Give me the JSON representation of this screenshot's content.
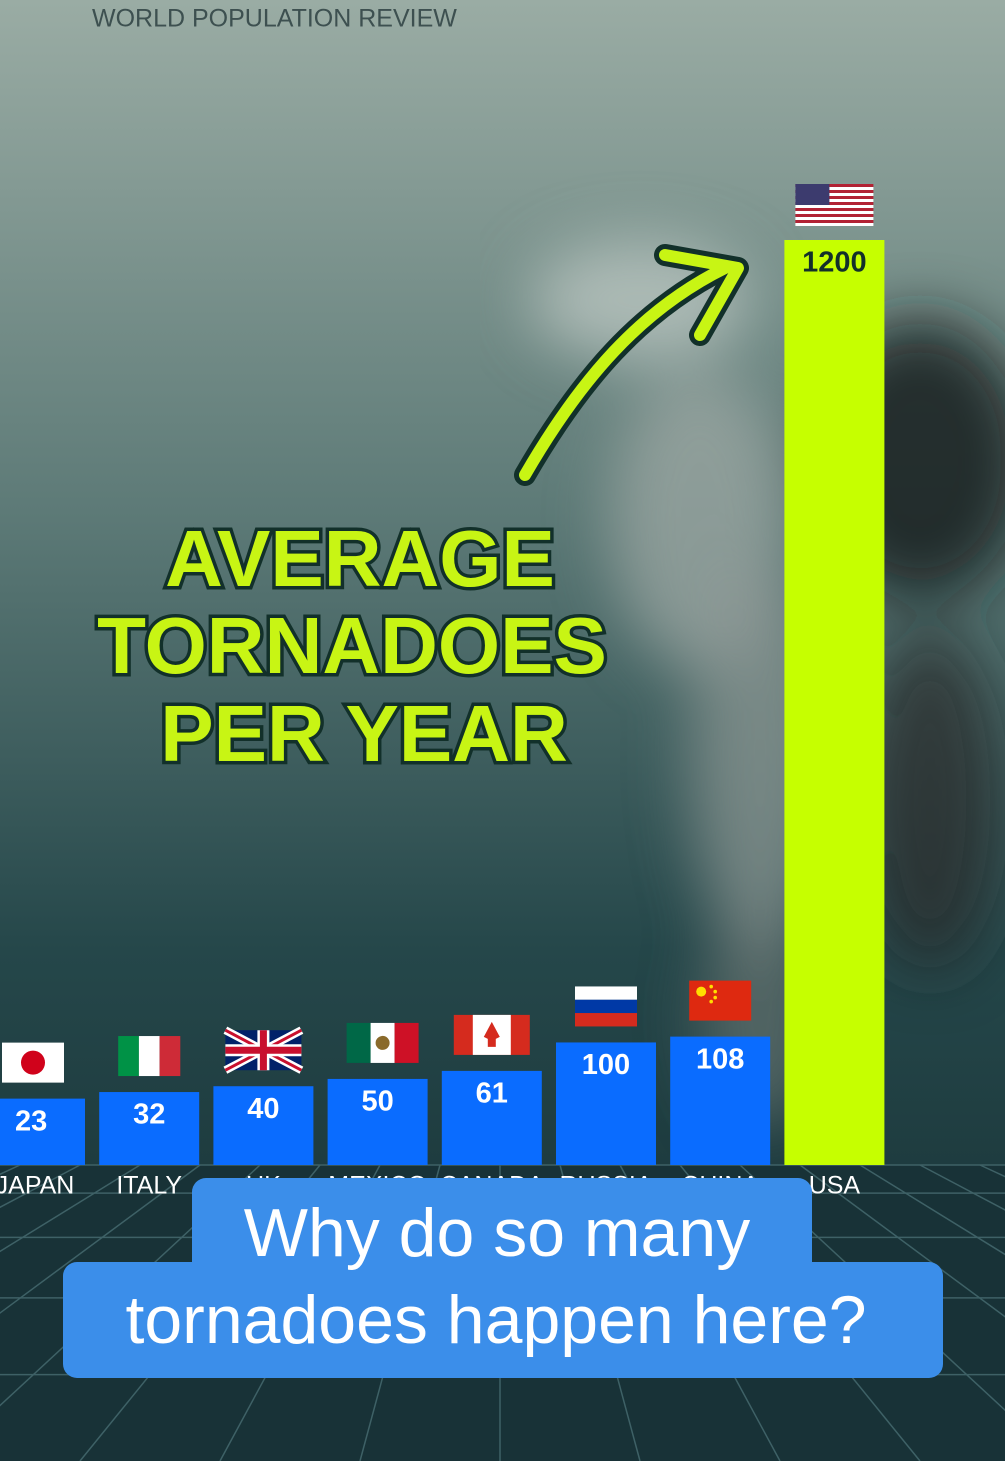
{
  "header": {
    "source": "WORLD POPULATION REVIEW"
  },
  "chart_data": {
    "type": "bar",
    "title_lines": [
      "AVERAGE",
      "TORNADOES",
      "PER YEAR"
    ],
    "categories": [
      "JAPAN",
      "ITALY",
      "UK",
      "MEXICO",
      "CANADA",
      "RUSSIA",
      "CHINA",
      "USA"
    ],
    "values": [
      23,
      32,
      40,
      50,
      61,
      100,
      108,
      1200
    ],
    "colors": [
      "#0a6cff",
      "#0a6cff",
      "#0a6cff",
      "#0a6cff",
      "#0a6cff",
      "#0a6cff",
      "#0a6cff",
      "#c6ff00"
    ],
    "ylim": [
      -68,
      1200
    ]
  },
  "caption": {
    "lines": [
      "Why do so many",
      "tornadoes happen here?"
    ]
  }
}
